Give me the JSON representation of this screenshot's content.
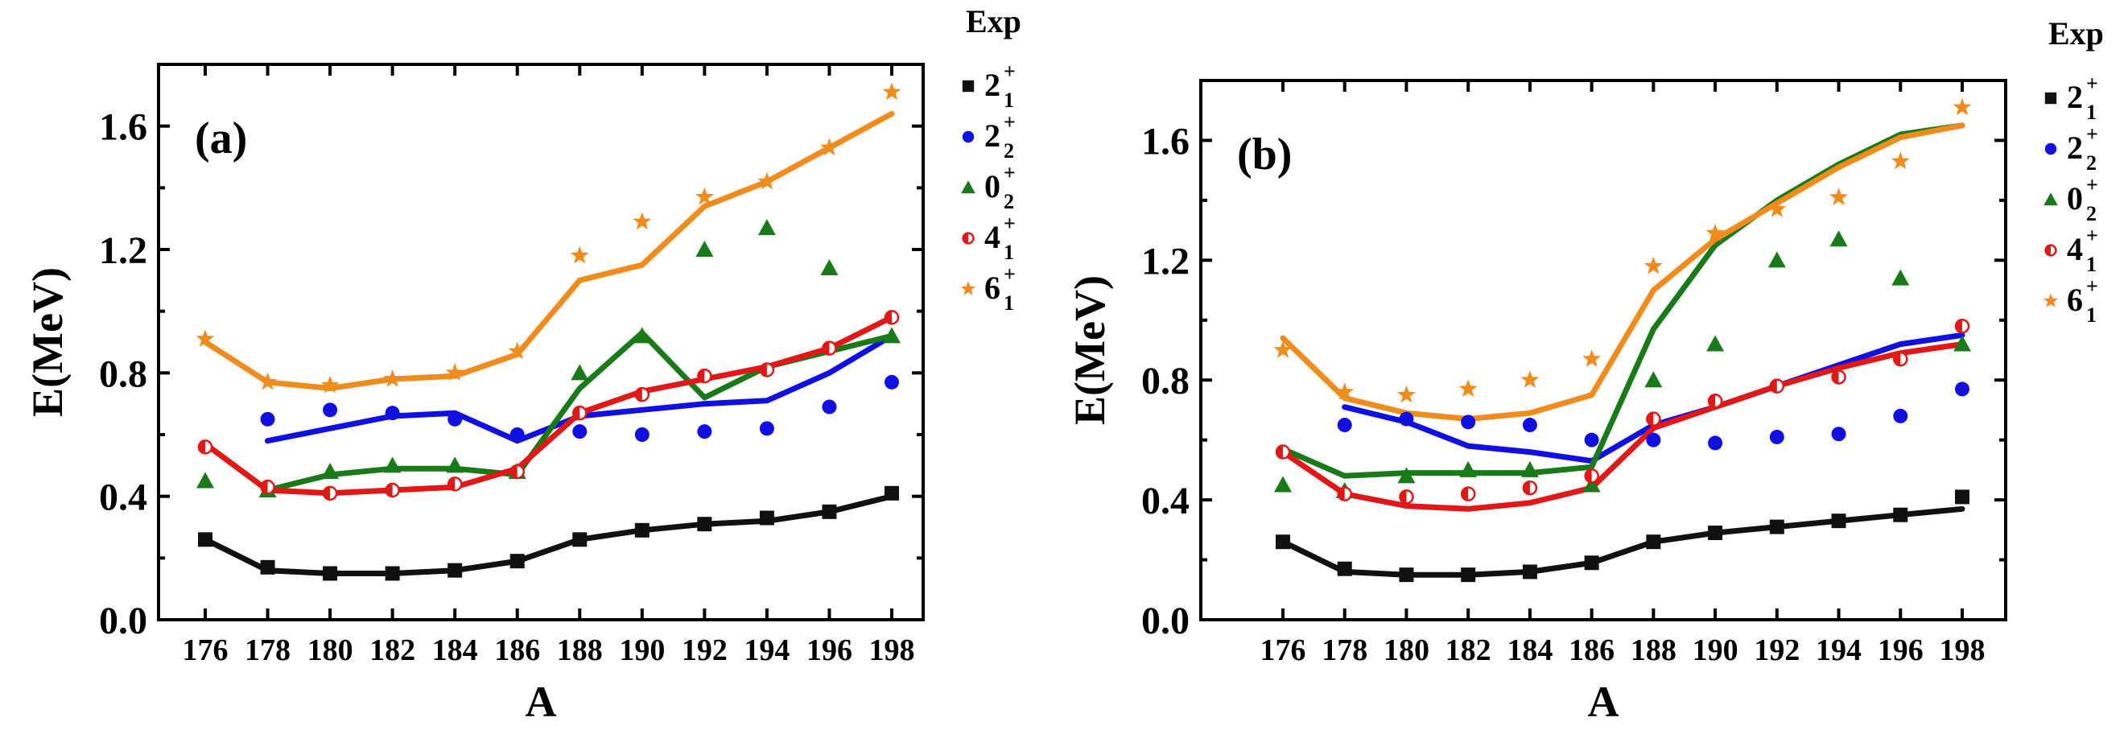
{
  "chart_data": [
    {
      "type": "line",
      "panel_label": "(a)",
      "xlabel": "A",
      "ylabel": "E(MeV)",
      "x": [
        176,
        178,
        180,
        182,
        184,
        186,
        188,
        190,
        192,
        194,
        196,
        198
      ],
      "ylim": [
        0.0,
        1.8
      ],
      "yticks": [
        "0.0",
        "0.4",
        "0.8",
        "1.2",
        "1.6"
      ],
      "ytick_values": [
        0.0,
        0.4,
        0.8,
        1.2,
        1.6
      ],
      "legend_title": "Exp",
      "series": [
        {
          "name": "2_1^+",
          "base": "2",
          "sub": "1",
          "sup": "+",
          "color": "#111111",
          "marker": "square",
          "theory": [
            0.26,
            0.16,
            0.15,
            0.15,
            0.16,
            0.19,
            0.26,
            0.29,
            0.31,
            0.32,
            0.35,
            0.4
          ],
          "exp": [
            0.26,
            0.17,
            0.15,
            0.15,
            0.16,
            0.19,
            0.26,
            0.29,
            0.31,
            0.33,
            0.35,
            0.41
          ]
        },
        {
          "name": "2_2^+",
          "base": "2",
          "sub": "2",
          "sup": "+",
          "color": "#1010e0",
          "marker": "circle",
          "theory": [
            null,
            0.58,
            0.62,
            0.66,
            0.67,
            0.58,
            0.66,
            0.68,
            0.7,
            0.71,
            0.8,
            0.92
          ],
          "exp": [
            null,
            0.65,
            0.68,
            0.67,
            0.65,
            0.6,
            0.61,
            0.6,
            0.61,
            0.62,
            0.69,
            0.77
          ]
        },
        {
          "name": "0_2^+",
          "base": "0",
          "sub": "2",
          "sup": "+",
          "color": "#1a7a1a",
          "marker": "triangle",
          "theory": [
            0.57,
            0.42,
            0.47,
            0.49,
            0.49,
            0.47,
            0.75,
            0.93,
            0.72,
            0.82,
            0.87,
            0.92
          ],
          "exp": [
            0.45,
            0.42,
            0.48,
            0.5,
            0.5,
            0.48,
            0.8,
            0.92,
            1.2,
            1.27,
            1.14,
            0.92
          ]
        },
        {
          "name": "4_1^+",
          "base": "4",
          "sub": "1",
          "sup": "+",
          "color": "#e01818",
          "marker": "half-circle",
          "theory": [
            0.57,
            0.42,
            0.41,
            0.42,
            0.43,
            0.49,
            0.67,
            0.74,
            0.78,
            0.82,
            0.88,
            0.98
          ],
          "exp": [
            0.56,
            0.43,
            0.41,
            0.42,
            0.44,
            0.48,
            0.67,
            0.73,
            0.79,
            0.81,
            0.88,
            0.98
          ]
        },
        {
          "name": "6_1^+",
          "base": "6",
          "sub": "1",
          "sup": "+",
          "color": "#f08c1e",
          "marker": "star",
          "theory": [
            0.9,
            0.77,
            0.75,
            0.78,
            0.79,
            0.86,
            1.1,
            1.15,
            1.34,
            1.42,
            1.53,
            1.64
          ],
          "exp": [
            0.91,
            0.77,
            0.76,
            0.78,
            0.8,
            0.87,
            1.18,
            1.29,
            1.37,
            1.42,
            1.53,
            1.71
          ]
        }
      ]
    },
    {
      "type": "line",
      "panel_label": "(b)",
      "xlabel": "A",
      "ylabel": "E(MeV)",
      "x": [
        176,
        178,
        180,
        182,
        184,
        186,
        188,
        190,
        192,
        194,
        196,
        198
      ],
      "ylim": [
        0.0,
        1.8
      ],
      "yticks": [
        "0.0",
        "0.4",
        "0.8",
        "1.2",
        "1.6"
      ],
      "ytick_values": [
        0.0,
        0.4,
        0.8,
        1.2,
        1.6
      ],
      "legend_title": "Exp",
      "series": [
        {
          "name": "2_1^+",
          "base": "2",
          "sub": "1",
          "sup": "+",
          "color": "#111111",
          "marker": "square",
          "theory": [
            0.26,
            0.16,
            0.15,
            0.15,
            0.16,
            0.19,
            0.26,
            0.29,
            0.31,
            0.33,
            0.35,
            0.37
          ],
          "exp": [
            0.26,
            0.17,
            0.15,
            0.15,
            0.16,
            0.19,
            0.26,
            0.29,
            0.31,
            0.33,
            0.35,
            0.41
          ]
        },
        {
          "name": "2_2^+",
          "base": "2",
          "sub": "2",
          "sup": "+",
          "color": "#1010e0",
          "marker": "circle",
          "theory": [
            null,
            0.71,
            0.66,
            0.58,
            0.56,
            0.53,
            0.65,
            0.71,
            0.78,
            0.85,
            0.92,
            0.95
          ],
          "exp": [
            null,
            0.65,
            0.67,
            0.66,
            0.65,
            0.6,
            0.6,
            0.59,
            0.61,
            0.62,
            0.68,
            0.77
          ]
        },
        {
          "name": "0_2^+",
          "base": "0",
          "sub": "2",
          "sup": "+",
          "color": "#1a7a1a",
          "marker": "triangle",
          "theory": [
            0.57,
            0.48,
            0.49,
            0.49,
            0.49,
            0.51,
            0.97,
            1.25,
            1.4,
            1.52,
            1.62,
            1.65
          ],
          "exp": [
            0.45,
            0.43,
            0.48,
            0.5,
            0.5,
            0.45,
            0.8,
            0.92,
            1.2,
            1.27,
            1.14,
            0.92
          ]
        },
        {
          "name": "4_1^+",
          "base": "4",
          "sub": "1",
          "sup": "+",
          "color": "#e01818",
          "marker": "half-circle",
          "theory": [
            0.56,
            0.42,
            0.38,
            0.37,
            0.39,
            0.44,
            0.64,
            0.71,
            0.78,
            0.84,
            0.89,
            0.92
          ],
          "exp": [
            0.56,
            0.42,
            0.41,
            0.42,
            0.44,
            0.48,
            0.67,
            0.73,
            0.78,
            0.81,
            0.87,
            0.98
          ]
        },
        {
          "name": "6_1^+",
          "base": "6",
          "sub": "1",
          "sup": "+",
          "color": "#f08c1e",
          "marker": "star",
          "theory": [
            0.94,
            0.74,
            0.69,
            0.67,
            0.69,
            0.75,
            1.1,
            1.27,
            1.39,
            1.51,
            1.61,
            1.65
          ],
          "exp": [
            0.9,
            0.76,
            0.75,
            0.77,
            0.8,
            0.87,
            1.18,
            1.29,
            1.37,
            1.41,
            1.53,
            1.71
          ]
        }
      ]
    }
  ]
}
